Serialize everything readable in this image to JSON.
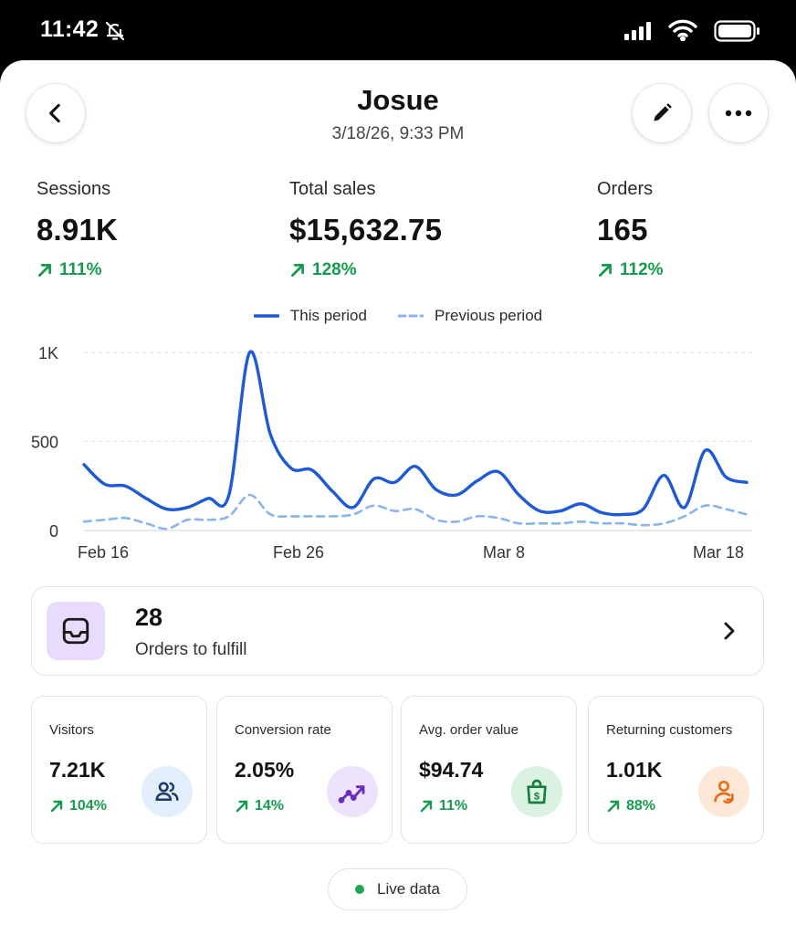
{
  "status_bar": {
    "time": "11:42"
  },
  "header": {
    "title": "Josue",
    "subtitle": "3/18/26, 9:33 PM"
  },
  "metrics": [
    {
      "label": "Sessions",
      "value": "8.91K",
      "change": "111%"
    },
    {
      "label": "Total sales",
      "value": "$15,632.75",
      "change": "128%"
    },
    {
      "label": "Orders",
      "value": "165",
      "change": "112%"
    }
  ],
  "chart_data": {
    "type": "line",
    "ylim": [
      0,
      1000
    ],
    "y_ticks": [
      "0",
      "500",
      "1K"
    ],
    "x_ticks": [
      "Feb 16",
      "Feb 26",
      "Mar 8",
      "Mar 18"
    ],
    "legend": [
      "This period",
      "Previous period"
    ],
    "series": [
      {
        "name": "This period",
        "style": "solid",
        "color": "#1f5ad6",
        "x": [
          0,
          1,
          2,
          3,
          4,
          5,
          6,
          7,
          8,
          9,
          10,
          11,
          12,
          13,
          14,
          15,
          16,
          17,
          18,
          19,
          20,
          21,
          22,
          23,
          24,
          25,
          26,
          27,
          28,
          29,
          30,
          31,
          32
        ],
        "values": [
          370,
          260,
          250,
          180,
          120,
          130,
          180,
          200,
          1000,
          540,
          350,
          340,
          220,
          130,
          290,
          270,
          360,
          230,
          200,
          280,
          330,
          200,
          110,
          110,
          150,
          100,
          90,
          120,
          310,
          130,
          450,
          300,
          270
        ]
      },
      {
        "name": "Previous period",
        "style": "dashed",
        "color": "#8ab4ec",
        "x": [
          0,
          1,
          2,
          3,
          4,
          5,
          6,
          7,
          8,
          9,
          10,
          11,
          12,
          13,
          14,
          15,
          16,
          17,
          18,
          19,
          20,
          21,
          22,
          23,
          24,
          25,
          26,
          27,
          28,
          29,
          30,
          31,
          32
        ],
        "values": [
          50,
          60,
          70,
          40,
          10,
          60,
          60,
          80,
          200,
          90,
          80,
          80,
          80,
          90,
          140,
          110,
          120,
          60,
          50,
          80,
          70,
          40,
          40,
          40,
          50,
          40,
          40,
          30,
          40,
          80,
          140,
          120,
          90
        ]
      }
    ]
  },
  "fulfill": {
    "count": "28",
    "label": "Orders to fulfill"
  },
  "stats": [
    {
      "label": "Visitors",
      "value": "7.21K",
      "change": "104%",
      "icon": "users-icon",
      "icon_bg": "#e3eefc",
      "icon_color": "#1c3a66"
    },
    {
      "label": "Conversion rate",
      "value": "2.05%",
      "change": "14%",
      "icon": "trend-up-icon",
      "icon_bg": "#ede2fb",
      "icon_color": "#6a2bbf"
    },
    {
      "label": "Avg. order value",
      "value": "$94.74",
      "change": "11%",
      "icon": "shopping-bag-dollar-icon",
      "icon_bg": "#dbf2e2",
      "icon_color": "#15803d"
    },
    {
      "label": "Returning customers",
      "value": "1.01K",
      "change": "88%",
      "icon": "returning-user-icon",
      "icon_bg": "#fde8d7",
      "icon_color": "#e26f1b"
    }
  ],
  "live": {
    "label": "Live data"
  },
  "colors": {
    "positive": "#169c4c",
    "series_current": "#1f5ad6",
    "series_previous": "#8ab4ec"
  }
}
